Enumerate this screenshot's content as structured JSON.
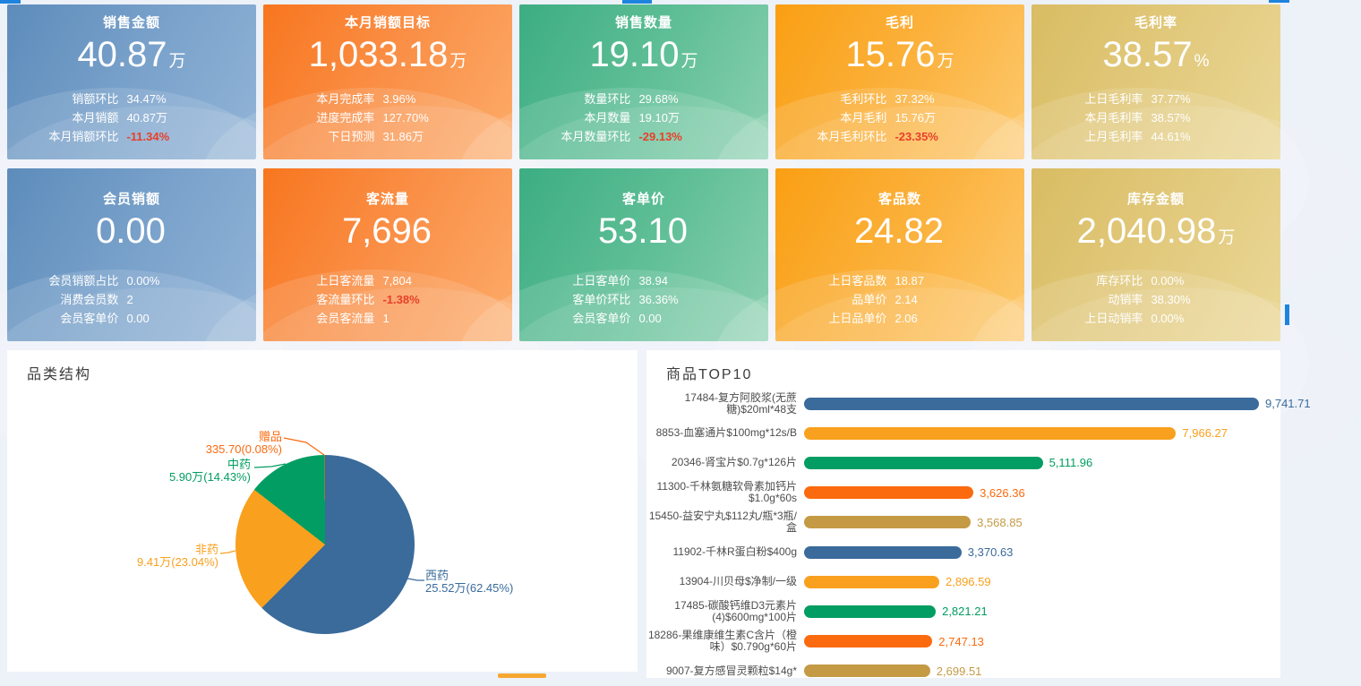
{
  "page_bg": "#edf1f8",
  "accent": {
    "indicator_blue": "#1e83dd",
    "indicator_orange": "#f5a730",
    "negative_red": "#e8402a"
  },
  "kpi_rows": [
    [
      {
        "theme": "blue",
        "title": "销售金额",
        "value": "40.87",
        "unit": "万",
        "metrics": [
          {
            "label": "销额环比",
            "value": "34.47%"
          },
          {
            "label": "本月销额",
            "value": "40.87万"
          },
          {
            "label": "本月销额环比",
            "value": "-11.34%",
            "negative": true
          }
        ]
      },
      {
        "theme": "orange",
        "title": "本月销额目标",
        "value": "1,033.18",
        "unit": "万",
        "metrics": [
          {
            "label": "本月完成率",
            "value": "3.96%"
          },
          {
            "label": "进度完成率",
            "value": "127.70%"
          },
          {
            "label": "下日预测",
            "value": "31.86万"
          }
        ]
      },
      {
        "theme": "green",
        "title": "销售数量",
        "value": "19.10",
        "unit": "万",
        "metrics": [
          {
            "label": "数量环比",
            "value": "29.68%"
          },
          {
            "label": "本月数量",
            "value": "19.10万"
          },
          {
            "label": "本月数量环比",
            "value": "-29.13%",
            "negative": true
          }
        ]
      },
      {
        "theme": "amber",
        "title": "毛利",
        "value": "15.76",
        "unit": "万",
        "metrics": [
          {
            "label": "毛利环比",
            "value": "37.32%"
          },
          {
            "label": "本月毛利",
            "value": "15.76万"
          },
          {
            "label": "本月毛利环比",
            "value": "-23.35%",
            "negative": true
          }
        ]
      },
      {
        "theme": "gold",
        "title": "毛利率",
        "value": "38.57",
        "unit": "%",
        "metrics": [
          {
            "label": "上日毛利率",
            "value": "37.77%"
          },
          {
            "label": "本月毛利率",
            "value": "38.57%"
          },
          {
            "label": "上月毛利率",
            "value": "44.61%"
          }
        ]
      }
    ],
    [
      {
        "theme": "blue",
        "title": "会员销额",
        "value": "0.00",
        "unit": "",
        "metrics": [
          {
            "label": "会员销额占比",
            "value": "0.00%"
          },
          {
            "label": "消费会员数",
            "value": "2"
          },
          {
            "label": "会员客单价",
            "value": "0.00"
          }
        ]
      },
      {
        "theme": "orange",
        "title": "客流量",
        "value": "7,696",
        "unit": "",
        "metrics": [
          {
            "label": "上日客流量",
            "value": "7,804"
          },
          {
            "label": "客流量环比",
            "value": "-1.38%",
            "negative": true
          },
          {
            "label": "会员客流量",
            "value": "1"
          }
        ]
      },
      {
        "theme": "green",
        "title": "客单价",
        "value": "53.10",
        "unit": "",
        "metrics": [
          {
            "label": "上日客单价",
            "value": "38.94"
          },
          {
            "label": "客单价环比",
            "value": "36.36%"
          },
          {
            "label": "会员客单价",
            "value": "0.00"
          }
        ]
      },
      {
        "theme": "amber",
        "title": "客品数",
        "value": "24.82",
        "unit": "",
        "metrics": [
          {
            "label": "上日客品数",
            "value": "18.87"
          },
          {
            "label": "品单价",
            "value": "2.14"
          },
          {
            "label": "上日品单价",
            "value": "2.06"
          }
        ]
      },
      {
        "theme": "gold",
        "title": "库存金额",
        "value": "2,040.98",
        "unit": "万",
        "metrics": [
          {
            "label": "库存环比",
            "value": "0.00%"
          },
          {
            "label": "动销率",
            "value": "38.30%"
          },
          {
            "label": "上日动销率",
            "value": "0.00%"
          }
        ]
      }
    ]
  ],
  "panels": {
    "category_title": "品类结构",
    "top10_title": "商品TOP10"
  },
  "chart_data": [
    {
      "type": "pie",
      "title": "品类结构",
      "legend_position": "none",
      "series": [
        {
          "name": "西药",
          "value": 255200,
          "display": "25.52万",
          "pct": 62.45,
          "label": "25.52万(62.45%)",
          "color": "#3a6b9b"
        },
        {
          "name": "非药",
          "value": 94100,
          "display": "9.41万",
          "pct": 23.04,
          "label": "9.41万(23.04%)",
          "color": "#f9a01e"
        },
        {
          "name": "中药",
          "value": 59000,
          "display": "5.90万",
          "pct": 14.43,
          "label": "5.90万(14.43%)",
          "color": "#029d62"
        },
        {
          "name": "赠品",
          "value": 335.7,
          "display": "335.70",
          "pct": 0.08,
          "label": "335.70(0.08%)",
          "color": "#fb6a0f"
        }
      ]
    },
    {
      "type": "bar",
      "orientation": "horizontal",
      "title": "商品TOP10",
      "max": 9741.71,
      "items": [
        {
          "label": "17484-复方阿胶浆(无蔗糖)$20ml*48支",
          "value": 9741.71,
          "display": "9,741.71",
          "color": "#3a6b9b"
        },
        {
          "label": "8853-血塞通片$100mg*12s/B",
          "value": 7966.27,
          "display": "7,966.27",
          "color": "#f9a01e"
        },
        {
          "label": "20346-肾宝片$0.7g*126片",
          "value": 5111.96,
          "display": "5,111.96",
          "color": "#029d62"
        },
        {
          "label": "11300-千林氨糖软骨素加钙片$1.0g*60s",
          "value": 3626.36,
          "display": "3,626.36",
          "color": "#fb6a0f"
        },
        {
          "label": "15450-益安宁丸$112丸/瓶*3瓶/盒",
          "value": 3568.85,
          "display": "3,568.85",
          "color": "#c49a45"
        },
        {
          "label": "11902-千林R蛋白粉$400g",
          "value": 3370.63,
          "display": "3,370.63",
          "color": "#3a6b9b"
        },
        {
          "label": "13904-川贝母$净制/一级",
          "value": 2896.59,
          "display": "2,896.59",
          "color": "#f9a01e"
        },
        {
          "label": "17485-碳酸钙维D3元素片(4)$600mg*100片",
          "value": 2821.21,
          "display": "2,821.21",
          "color": "#029d62"
        },
        {
          "label": "18286-果维康维生素C含片（橙味）$0.790g*60片",
          "value": 2747.13,
          "display": "2,747.13",
          "color": "#fb6a0f"
        },
        {
          "label": "9007-复方感冒灵颗粒$14g*",
          "value": 2699.51,
          "display": "2,699.51",
          "color": "#c49a45"
        }
      ]
    }
  ]
}
